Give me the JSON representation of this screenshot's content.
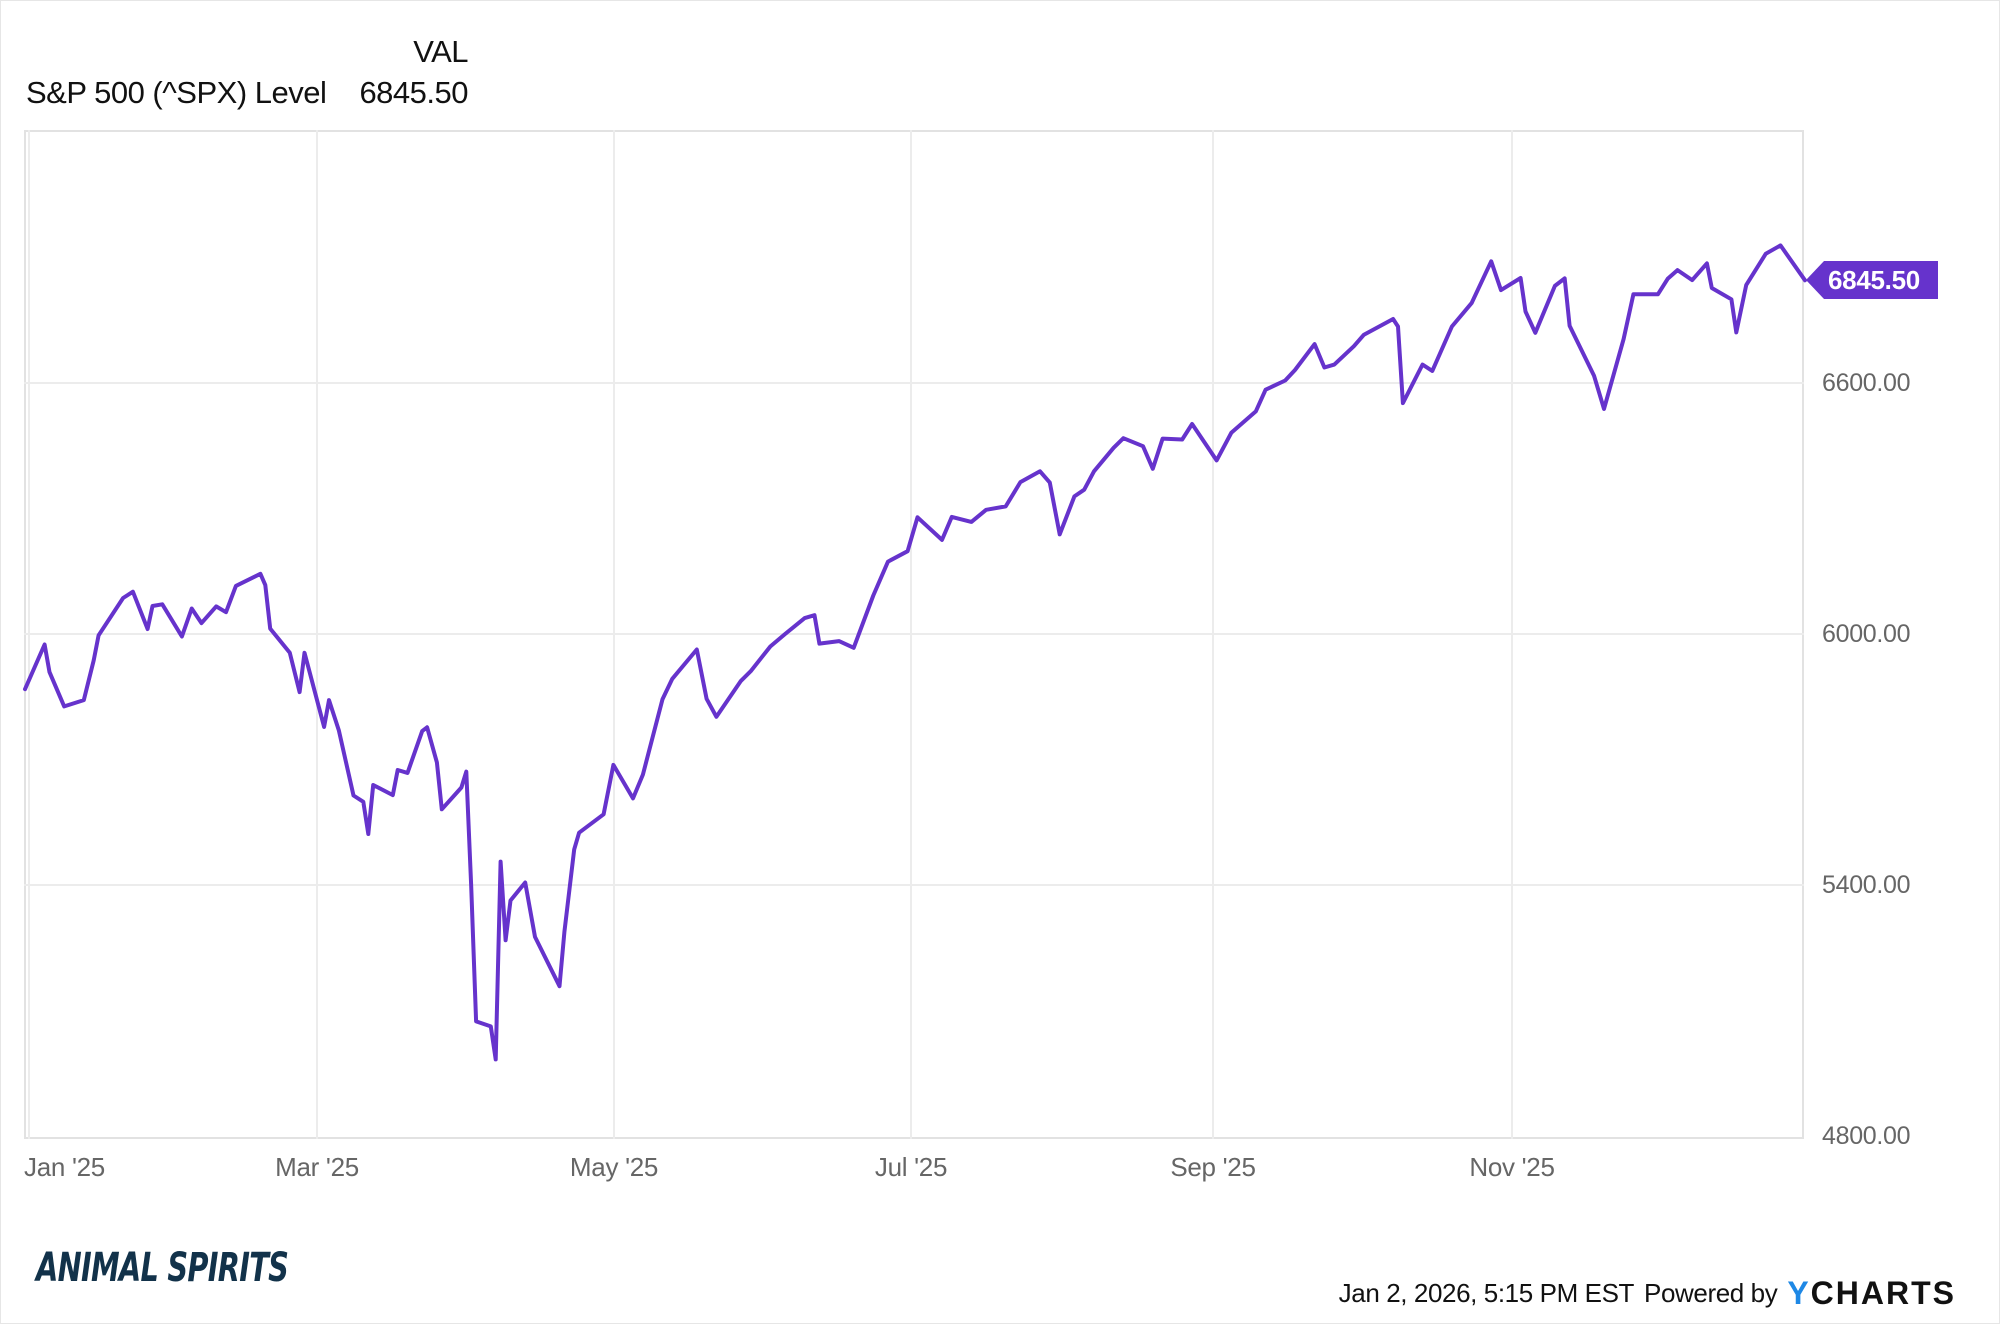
{
  "header": {
    "column_label": "VAL",
    "series_name": "S&P 500 (^SPX) Level",
    "series_value": "6845.50"
  },
  "last_value_label": "6845.50",
  "footer": {
    "timestamp": "Jan 2, 2026, 5:15 PM EST",
    "powered_by": "Powered by",
    "brand_y": "Y",
    "brand_rest": "CHARTS",
    "logo_text": "ANIMAL SPIRITS"
  },
  "colors": {
    "line": "#6633cc",
    "label_bg": "#6633cc",
    "grid": "#ececec",
    "axis_text": "#666666",
    "brand_blue": "#1e88e5",
    "logo": "#12324a"
  },
  "chart_data": {
    "type": "line",
    "title": "S&P 500 (^SPX) Level",
    "xlabel": "",
    "ylabel": "",
    "ylim": [
      4800,
      7000
    ],
    "y_ticks": [
      "4800.00",
      "5400.00",
      "6000.00",
      "6600.00"
    ],
    "x_ticks": [
      "Jan '25",
      "Mar '25",
      "May '25",
      "Jul '25",
      "Sep '25",
      "Nov '25"
    ],
    "grid": true,
    "legend": "header table (top-left)",
    "last_value": 6845.5,
    "series": [
      {
        "name": "S&P 500 (^SPX) Level",
        "points": [
          [
            "2025-01-02",
            5868
          ],
          [
            "2025-01-06",
            5975
          ],
          [
            "2025-01-07",
            5909
          ],
          [
            "2025-01-10",
            5827
          ],
          [
            "2025-01-14",
            5842
          ],
          [
            "2025-01-16",
            5937
          ],
          [
            "2025-01-17",
            5997
          ],
          [
            "2025-01-22",
            6086
          ],
          [
            "2025-01-24",
            6101
          ],
          [
            "2025-01-27",
            6012
          ],
          [
            "2025-01-28",
            6067
          ],
          [
            "2025-01-30",
            6071
          ],
          [
            "2025-02-03",
            5994
          ],
          [
            "2025-02-05",
            6061
          ],
          [
            "2025-02-07",
            6026
          ],
          [
            "2025-02-10",
            6066
          ],
          [
            "2025-02-12",
            6052
          ],
          [
            "2025-02-14",
            6115
          ],
          [
            "2025-02-19",
            6144
          ],
          [
            "2025-02-20",
            6117
          ],
          [
            "2025-02-21",
            6013
          ],
          [
            "2025-02-25",
            5955
          ],
          [
            "2025-02-27",
            5861
          ],
          [
            "2025-02-28",
            5955
          ],
          [
            "2025-03-04",
            5778
          ],
          [
            "2025-03-05",
            5842
          ],
          [
            "2025-03-07",
            5770
          ],
          [
            "2025-03-10",
            5614
          ],
          [
            "2025-03-12",
            5599
          ],
          [
            "2025-03-13",
            5522
          ],
          [
            "2025-03-14",
            5639
          ],
          [
            "2025-03-18",
            5615
          ],
          [
            "2025-03-19",
            5675
          ],
          [
            "2025-03-21",
            5668
          ],
          [
            "2025-03-24",
            5768
          ],
          [
            "2025-03-25",
            5777
          ],
          [
            "2025-03-27",
            5693
          ],
          [
            "2025-03-28",
            5581
          ],
          [
            "2025-04-01",
            5633
          ],
          [
            "2025-04-02",
            5671
          ],
          [
            "2025-04-03",
            5397
          ],
          [
            "2025-04-04",
            5074
          ],
          [
            "2025-04-07",
            5062
          ],
          [
            "2025-04-08",
            4983
          ],
          [
            "2025-04-09",
            5456
          ],
          [
            "2025-04-10",
            5268
          ],
          [
            "2025-04-11",
            5363
          ],
          [
            "2025-04-14",
            5406
          ],
          [
            "2025-04-16",
            5276
          ],
          [
            "2025-04-21",
            5158
          ],
          [
            "2025-04-22",
            5288
          ],
          [
            "2025-04-24",
            5485
          ],
          [
            "2025-04-25",
            5525
          ],
          [
            "2025-04-30",
            5569
          ],
          [
            "2025-05-02",
            5687
          ],
          [
            "2025-05-06",
            5607
          ],
          [
            "2025-05-08",
            5664
          ],
          [
            "2025-05-12",
            5844
          ],
          [
            "2025-05-14",
            5893
          ],
          [
            "2025-05-19",
            5963
          ],
          [
            "2025-05-21",
            5845
          ],
          [
            "2025-05-23",
            5802
          ],
          [
            "2025-05-28",
            5888
          ],
          [
            "2025-05-30",
            5911
          ],
          [
            "2025-06-03",
            5970
          ],
          [
            "2025-06-06",
            6000
          ],
          [
            "2025-06-10",
            6038
          ],
          [
            "2025-06-12",
            6045
          ],
          [
            "2025-06-13",
            5977
          ],
          [
            "2025-06-17",
            5983
          ],
          [
            "2025-06-20",
            5967
          ],
          [
            "2025-06-24",
            6092
          ],
          [
            "2025-06-27",
            6173
          ],
          [
            "2025-07-01",
            6198
          ],
          [
            "2025-07-03",
            6279
          ],
          [
            "2025-07-08",
            6225
          ],
          [
            "2025-07-10",
            6280
          ],
          [
            "2025-07-14",
            6268
          ],
          [
            "2025-07-17",
            6297
          ],
          [
            "2025-07-21",
            6305
          ],
          [
            "2025-07-24",
            6363
          ],
          [
            "2025-07-28",
            6389
          ],
          [
            "2025-07-30",
            6362
          ],
          [
            "2025-08-01",
            6238
          ],
          [
            "2025-08-04",
            6329
          ],
          [
            "2025-08-06",
            6345
          ],
          [
            "2025-08-08",
            6389
          ],
          [
            "2025-08-12",
            6445
          ],
          [
            "2025-08-14",
            6468
          ],
          [
            "2025-08-18",
            6449
          ],
          [
            "2025-08-20",
            6395
          ],
          [
            "2025-08-22",
            6467
          ],
          [
            "2025-08-26",
            6465
          ],
          [
            "2025-08-28",
            6502
          ],
          [
            "2025-09-02",
            6415
          ],
          [
            "2025-09-05",
            6481
          ],
          [
            "2025-09-10",
            6532
          ],
          [
            "2025-09-12",
            6584
          ],
          [
            "2025-09-16",
            6606
          ],
          [
            "2025-09-18",
            6631
          ],
          [
            "2025-09-22",
            6693
          ],
          [
            "2025-09-24",
            6637
          ],
          [
            "2025-09-26",
            6644
          ],
          [
            "2025-09-30",
            6688
          ],
          [
            "2025-10-02",
            6715
          ],
          [
            "2025-10-08",
            6753
          ],
          [
            "2025-10-09",
            6735
          ],
          [
            "2025-10-10",
            6552
          ],
          [
            "2025-10-14",
            6644
          ],
          [
            "2025-10-16",
            6629
          ],
          [
            "2025-10-20",
            6735
          ],
          [
            "2025-10-24",
            6791
          ],
          [
            "2025-10-28",
            6891
          ],
          [
            "2025-10-30",
            6822
          ],
          [
            "2025-11-03",
            6851
          ],
          [
            "2025-11-04",
            6771
          ],
          [
            "2025-11-06",
            6720
          ],
          [
            "2025-11-10",
            6832
          ],
          [
            "2025-11-12",
            6850
          ],
          [
            "2025-11-13",
            6737
          ],
          [
            "2025-11-18",
            6617
          ],
          [
            "2025-11-20",
            6538
          ],
          [
            "2025-11-24",
            6705
          ],
          [
            "2025-11-26",
            6812
          ],
          [
            "2025-12-01",
            6812
          ],
          [
            "2025-12-03",
            6849
          ],
          [
            "2025-12-05",
            6870
          ],
          [
            "2025-12-08",
            6846
          ],
          [
            "2025-12-11",
            6886
          ],
          [
            "2025-12-12",
            6827
          ],
          [
            "2025-12-16",
            6800
          ],
          [
            "2025-12-17",
            6721
          ],
          [
            "2025-12-19",
            6834
          ],
          [
            "2025-12-23",
            6909
          ],
          [
            "2025-12-26",
            6929
          ],
          [
            "2025-12-31",
            6845.5
          ]
        ]
      }
    ]
  }
}
